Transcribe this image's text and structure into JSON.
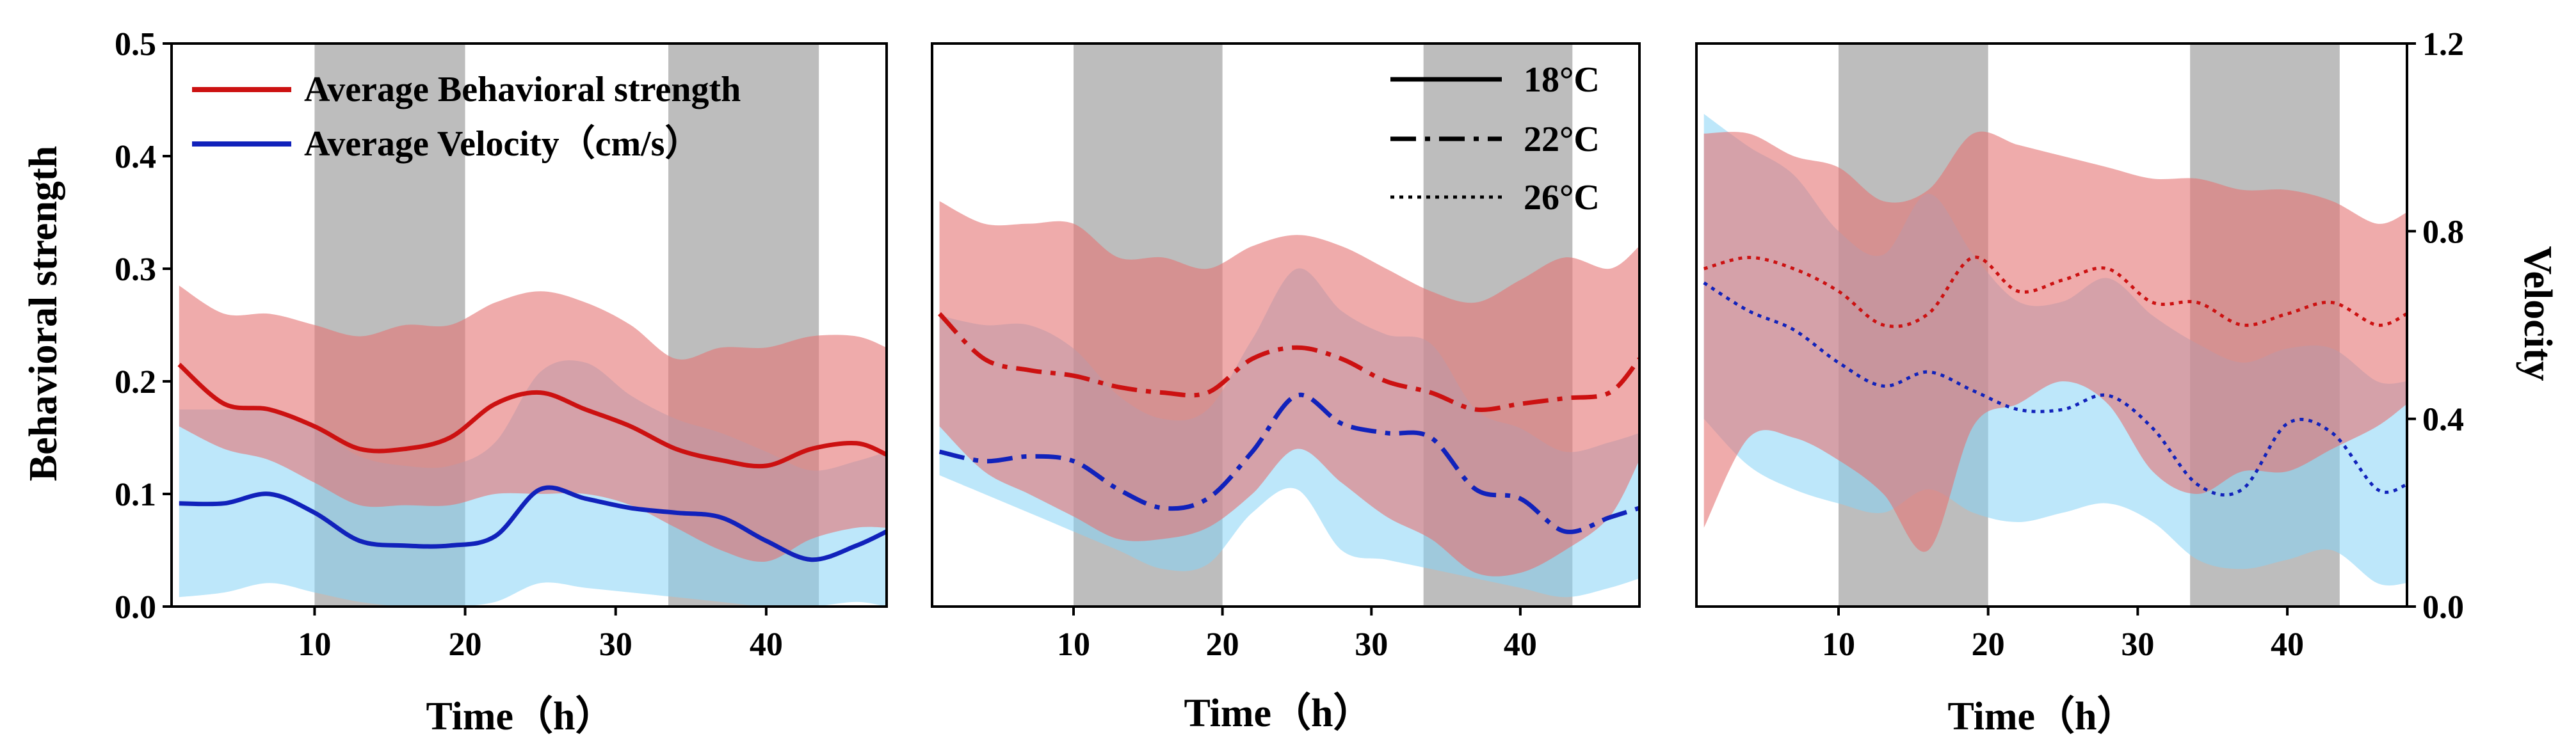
{
  "chart_data": {
    "type": "line",
    "shaded_time_intervals": [
      [
        10,
        20
      ],
      [
        33.5,
        43.5
      ]
    ],
    "y_left": {
      "label": "Behavioral strength",
      "range": [
        0.0,
        0.5
      ],
      "ticks": [
        "0.0",
        "0.1",
        "0.2",
        "0.3",
        "0.4",
        "0.5"
      ]
    },
    "y_right": {
      "label": "Velocity",
      "range": [
        0.0,
        1.2
      ],
      "ticks": [
        "0.0",
        "0.4",
        "0.8",
        "1.2"
      ]
    },
    "x": {
      "label": "Time（h）",
      "range": [
        0.5,
        48
      ],
      "ticks": [
        "10",
        "20",
        "30",
        "40"
      ]
    },
    "legend_series": {
      "items": [
        {
          "label": "Average Behavioral strength",
          "color": "#cc1111"
        },
        {
          "label": "Average Velocity（cm/s）",
          "color": "#1122bb"
        }
      ]
    },
    "legend_temperature": {
      "items": [
        {
          "label": "18°C",
          "style": "solid"
        },
        {
          "label": "22°C",
          "style": "dashdot"
        },
        {
          "label": "26°C",
          "style": "dotted"
        }
      ]
    },
    "colors": {
      "behavior_line": "#cc1111",
      "behavior_band": "#e57373",
      "velocity_line": "#1122bb",
      "velocity_band": "#87d3f5",
      "night_shade": "#bdbdbd"
    },
    "panels": [
      {
        "temperature": "18°C",
        "style": "solid",
        "time": [
          1,
          4,
          7,
          10,
          13,
          16,
          19,
          22,
          25,
          28,
          31,
          34,
          37,
          40,
          43,
          46,
          48
        ],
        "behavior_mean": [
          0.215,
          0.18,
          0.175,
          0.16,
          0.14,
          0.14,
          0.15,
          0.18,
          0.19,
          0.175,
          0.16,
          0.14,
          0.13,
          0.125,
          0.14,
          0.145,
          0.135
        ],
        "behavior_upper": [
          0.285,
          0.26,
          0.26,
          0.25,
          0.24,
          0.25,
          0.25,
          0.27,
          0.28,
          0.27,
          0.25,
          0.22,
          0.23,
          0.23,
          0.24,
          0.24,
          0.23
        ],
        "behavior_lower": [
          0.16,
          0.14,
          0.13,
          0.11,
          0.09,
          0.09,
          0.09,
          0.1,
          0.1,
          0.1,
          0.09,
          0.07,
          0.05,
          0.04,
          0.06,
          0.07,
          0.07
        ],
        "velocity_mean": [
          0.22,
          0.22,
          0.24,
          0.2,
          0.14,
          0.13,
          0.13,
          0.15,
          0.25,
          0.23,
          0.21,
          0.2,
          0.19,
          0.14,
          0.1,
          0.13,
          0.16
        ],
        "velocity_upper": [
          0.42,
          0.42,
          0.42,
          0.38,
          0.32,
          0.3,
          0.3,
          0.35,
          0.5,
          0.52,
          0.45,
          0.4,
          0.37,
          0.33,
          0.29,
          0.31,
          0.33
        ],
        "velocity_lower": [
          0.02,
          0.03,
          0.05,
          0.03,
          0.01,
          0.0,
          0.0,
          0.01,
          0.05,
          0.04,
          0.03,
          0.02,
          0.01,
          0.0,
          0.0,
          0.01,
          0.0
        ]
      },
      {
        "temperature": "22°C",
        "style": "dashdot",
        "time": [
          1,
          4,
          7,
          10,
          13,
          16,
          19,
          22,
          25,
          28,
          31,
          34,
          37,
          40,
          43,
          46,
          48
        ],
        "behavior_mean": [
          0.26,
          0.22,
          0.21,
          0.205,
          0.195,
          0.19,
          0.19,
          0.22,
          0.23,
          0.22,
          0.2,
          0.19,
          0.175,
          0.18,
          0.185,
          0.19,
          0.22
        ],
        "behavior_upper": [
          0.36,
          0.34,
          0.34,
          0.34,
          0.31,
          0.31,
          0.3,
          0.32,
          0.33,
          0.32,
          0.3,
          0.28,
          0.27,
          0.29,
          0.31,
          0.3,
          0.32
        ],
        "behavior_lower": [
          0.16,
          0.12,
          0.1,
          0.08,
          0.06,
          0.06,
          0.07,
          0.1,
          0.14,
          0.11,
          0.08,
          0.06,
          0.03,
          0.03,
          0.05,
          0.08,
          0.13
        ],
        "velocity_mean": [
          0.33,
          0.31,
          0.32,
          0.31,
          0.25,
          0.21,
          0.23,
          0.33,
          0.45,
          0.39,
          0.37,
          0.36,
          0.25,
          0.23,
          0.16,
          0.19,
          0.21
        ],
        "velocity_upper": [
          0.62,
          0.6,
          0.6,
          0.55,
          0.45,
          0.4,
          0.42,
          0.57,
          0.72,
          0.63,
          0.58,
          0.56,
          0.42,
          0.38,
          0.33,
          0.35,
          0.37
        ],
        "velocity_lower": [
          0.28,
          0.24,
          0.2,
          0.16,
          0.12,
          0.08,
          0.09,
          0.2,
          0.25,
          0.12,
          0.1,
          0.08,
          0.06,
          0.04,
          0.02,
          0.04,
          0.06
        ]
      },
      {
        "temperature": "26°C",
        "style": "dotted",
        "time": [
          1,
          4,
          7,
          10,
          13,
          16,
          19,
          22,
          25,
          28,
          31,
          34,
          37,
          40,
          43,
          46,
          48
        ],
        "behavior_mean": [
          0.3,
          0.31,
          0.3,
          0.28,
          0.25,
          0.26,
          0.31,
          0.28,
          0.29,
          0.3,
          0.27,
          0.27,
          0.25,
          0.26,
          0.27,
          0.25,
          0.26
        ],
        "behavior_upper": [
          0.42,
          0.42,
          0.4,
          0.39,
          0.36,
          0.37,
          0.42,
          0.41,
          0.4,
          0.39,
          0.38,
          0.38,
          0.37,
          0.37,
          0.36,
          0.34,
          0.35
        ],
        "behavior_lower": [
          0.07,
          0.15,
          0.15,
          0.13,
          0.1,
          0.05,
          0.16,
          0.18,
          0.2,
          0.18,
          0.12,
          0.1,
          0.12,
          0.12,
          0.14,
          0.16,
          0.18
        ],
        "velocity_mean": [
          0.69,
          0.63,
          0.59,
          0.52,
          0.47,
          0.5,
          0.46,
          0.42,
          0.42,
          0.45,
          0.38,
          0.26,
          0.25,
          0.39,
          0.37,
          0.25,
          0.26
        ],
        "velocity_upper": [
          1.05,
          0.98,
          0.92,
          0.8,
          0.75,
          0.88,
          0.75,
          0.65,
          0.65,
          0.7,
          0.62,
          0.56,
          0.52,
          0.55,
          0.55,
          0.48,
          0.48
        ],
        "velocity_lower": [
          0.4,
          0.3,
          0.25,
          0.22,
          0.2,
          0.25,
          0.2,
          0.18,
          0.2,
          0.22,
          0.18,
          0.1,
          0.08,
          0.1,
          0.12,
          0.05,
          0.05
        ]
      }
    ]
  }
}
